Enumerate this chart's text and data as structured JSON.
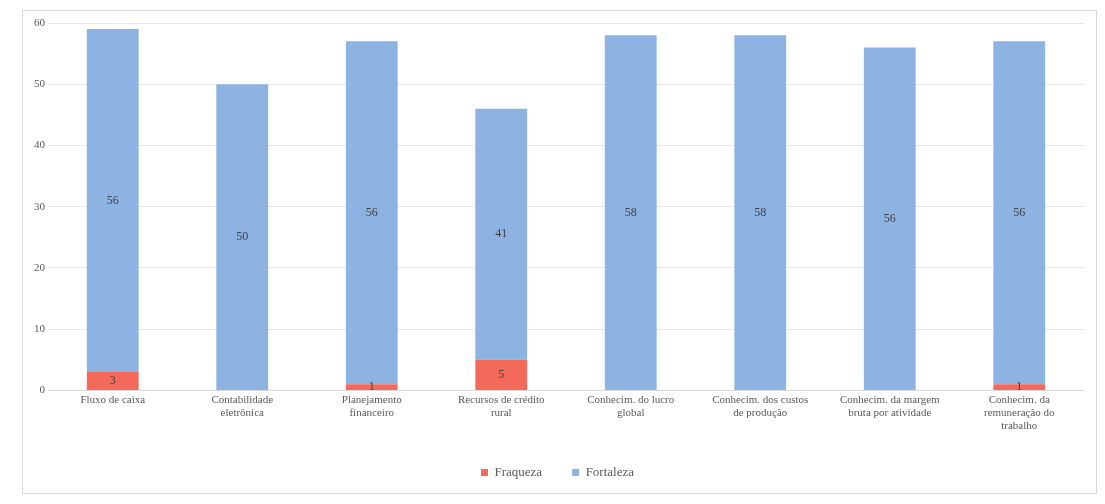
{
  "chart_data": {
    "type": "bar",
    "stacked": true,
    "categories": [
      "Fluxo de caixa",
      "Contabilidade eletrônica",
      "Planejamento financeiro",
      "Recursos de crédito rural",
      "Conhecim. do lucro global",
      "Conhecim. dos custos de produção",
      "Conhecim. da margem bruta por atividade",
      "Conhecim. da remuneração do trabalho"
    ],
    "series": [
      {
        "name": "Fraqueza",
        "color": "#f4695a",
        "values": [
          3,
          0,
          1,
          5,
          0,
          0,
          0,
          1
        ],
        "value_labels": [
          "3",
          null,
          "1",
          "5",
          null,
          null,
          null,
          "1"
        ]
      },
      {
        "name": "Fortaleza",
        "color": "#8db3e2",
        "values": [
          56,
          50,
          56,
          41,
          58,
          58,
          56,
          56
        ],
        "value_labels": [
          "56",
          "50",
          "56",
          "41",
          "58",
          "58",
          "56",
          "56"
        ]
      }
    ],
    "ylim": [
      0,
      60
    ],
    "yticks": [
      0,
      10,
      20,
      30,
      40,
      50,
      60
    ],
    "grid": "y",
    "legend": "bottom"
  }
}
